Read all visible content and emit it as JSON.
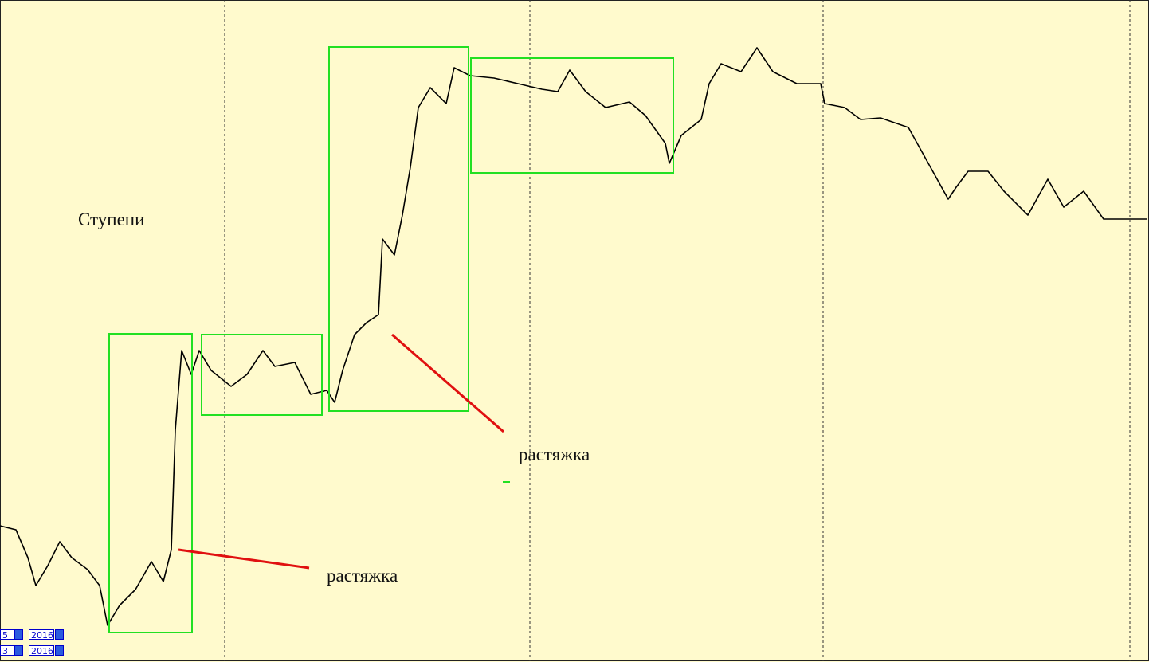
{
  "annotations": {
    "title": "Ступени",
    "labels": [
      "растяжка",
      "растяжка"
    ]
  },
  "date_controls": [
    {
      "day": "5",
      "year": "2016"
    },
    {
      "day": "3",
      "year": "2016"
    }
  ]
}
